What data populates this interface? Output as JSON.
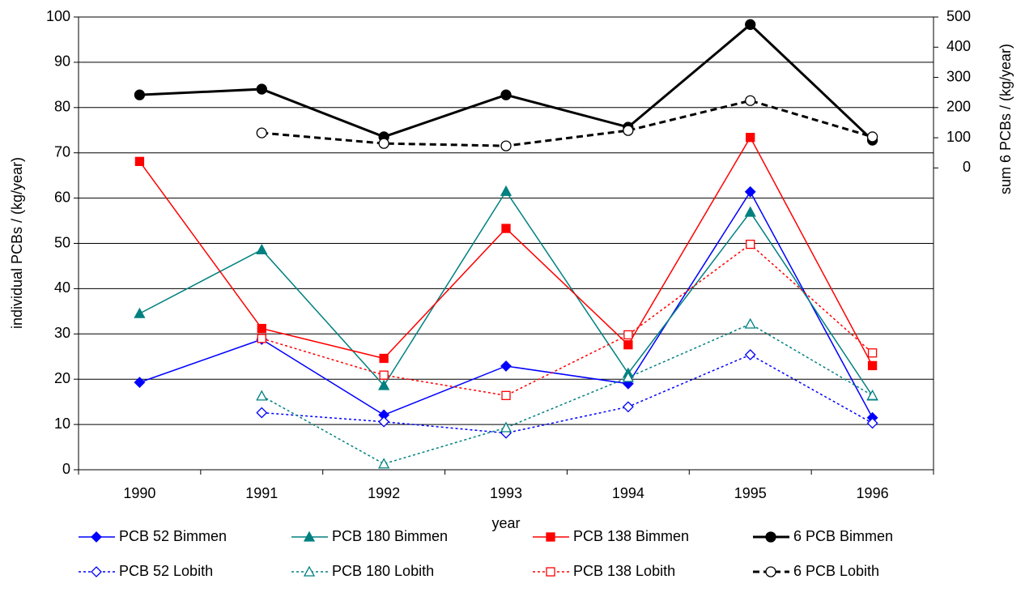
{
  "chart_data": {
    "type": "line",
    "x_label": "year",
    "y_label": "individual PCBs / (kg/year)",
    "y2_label": "sum 6 PCBs / (kg/year)",
    "categories": [
      "1990",
      "1991",
      "1992",
      "1993",
      "1994",
      "1995",
      "1996"
    ],
    "ylim": [
      0,
      100
    ],
    "yticks": [
      0,
      10,
      20,
      30,
      40,
      50,
      60,
      70,
      80,
      90,
      100
    ],
    "y2lim": [
      -1000,
      500
    ],
    "y2ticks": [
      0,
      100,
      200,
      300,
      400,
      500
    ],
    "grid": true,
    "series": [
      {
        "name": "PCB 52 Bimmen",
        "color": "#0000ff",
        "marker": "diamond",
        "filled": true,
        "dashed": false,
        "width": 1.5,
        "values": [
          19.3,
          28.8,
          12.1,
          22.9,
          19.0,
          61.4,
          11.5
        ]
      },
      {
        "name": "PCB 180 Bimmen",
        "color": "#008080",
        "marker": "triangle",
        "filled": true,
        "dashed": false,
        "width": 1.5,
        "values": [
          34.5,
          48.6,
          18.6,
          61.5,
          21.3,
          56.9,
          16.3
        ]
      },
      {
        "name": "PCB 138 Bimmen",
        "color": "#ff0000",
        "marker": "square",
        "filled": true,
        "dashed": false,
        "width": 1.5,
        "values": [
          68.1,
          31.2,
          24.6,
          53.3,
          27.6,
          73.4,
          23.0
        ]
      },
      {
        "name": "6 PCB Bimmen",
        "color": "#000000",
        "marker": "circle",
        "filled": true,
        "dashed": false,
        "width": 3,
        "axis": "y2",
        "values": [
          242,
          261,
          103,
          242,
          135,
          475,
          92
        ]
      },
      {
        "name": "PCB 52 Lobith",
        "color": "#0000ff",
        "marker": "diamond",
        "filled": false,
        "dashed": true,
        "width": 1.5,
        "values": [
          null,
          12.6,
          10.6,
          8.1,
          13.9,
          25.4,
          10.3
        ]
      },
      {
        "name": "PCB 180 Lobith",
        "color": "#008080",
        "marker": "triangle",
        "filled": false,
        "dashed": true,
        "width": 1.5,
        "values": [
          null,
          16.3,
          1.3,
          9.3,
          20.4,
          32.2,
          16.4
        ]
      },
      {
        "name": "PCB 138 Lobith",
        "color": "#ff0000",
        "marker": "square",
        "filled": false,
        "dashed": true,
        "width": 1.5,
        "values": [
          null,
          29.0,
          20.9,
          16.4,
          29.8,
          49.8,
          25.8
        ]
      },
      {
        "name": "6 PCB Lobith",
        "color": "#000000",
        "marker": "circle",
        "filled": false,
        "dashed": true,
        "width": 3,
        "axis": "y2",
        "values": [
          null,
          116,
          81,
          73,
          124,
          223,
          103
        ]
      }
    ]
  }
}
